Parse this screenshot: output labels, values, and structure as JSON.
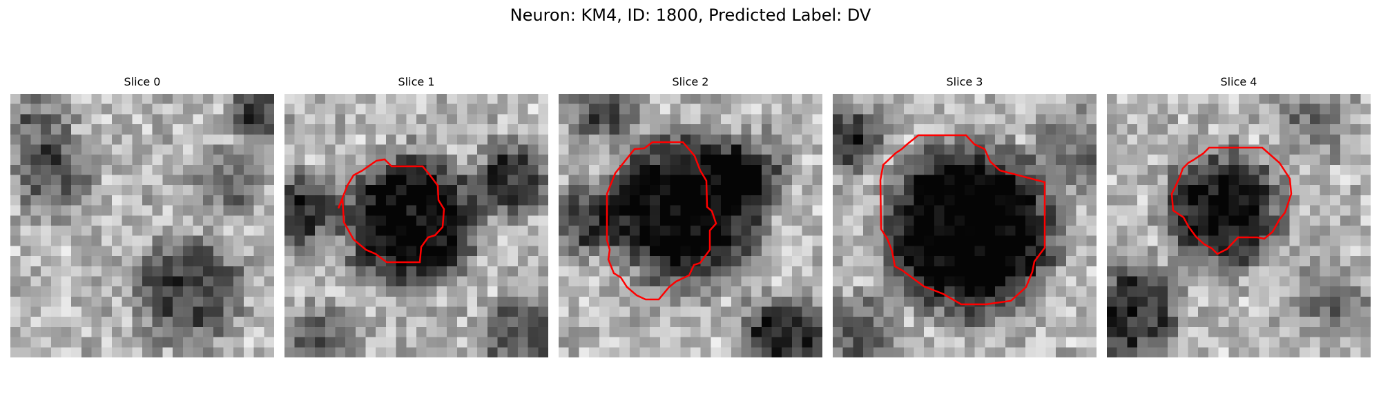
{
  "figure": {
    "title": "Neuron: KM4, ID: 1800, Predicted Label: DV"
  },
  "overlay_color": "#ff0000",
  "panels": [
    {
      "title": "Slice 0",
      "has_contour": false
    },
    {
      "title": "Slice 1",
      "has_contour": true
    },
    {
      "title": "Slice 2",
      "has_contour": true
    },
    {
      "title": "Slice 3",
      "has_contour": true
    },
    {
      "title": "Slice 4",
      "has_contour": true
    }
  ]
}
